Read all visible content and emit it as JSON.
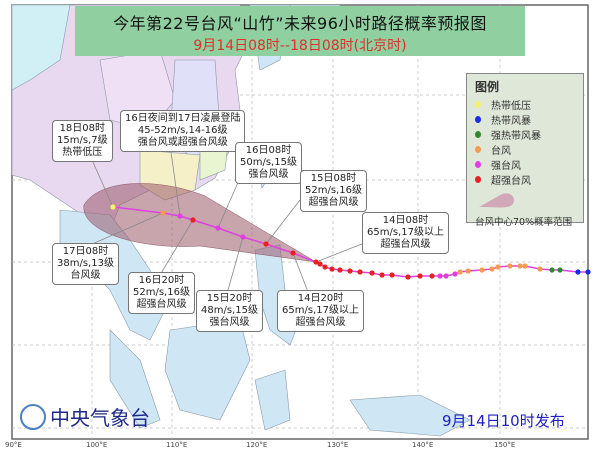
{
  "header": {
    "title": "今年第22号台风“山竹”未来96小时路径概率预报图",
    "subtitle": "9月14日08时--18日08时(北京时)"
  },
  "legend": {
    "heading": "图例",
    "items": [
      {
        "label": "热带低压",
        "color": "#f5f06a"
      },
      {
        "label": "热带风暴",
        "color": "#1a2be0"
      },
      {
        "label": "强热带风暴",
        "color": "#2e8a2e"
      },
      {
        "label": "台风",
        "color": "#f59a50"
      },
      {
        "label": "强台风",
        "color": "#e040e0"
      },
      {
        "label": "超强台风",
        "color": "#e82020"
      }
    ],
    "cone_label": "台风中心70%概率范围",
    "cone_color": "#b07a88"
  },
  "forecast_labels": [
    {
      "id": "t18-08",
      "lines": [
        "18日08时",
        "15m/s,7级",
        "热带低压"
      ]
    },
    {
      "id": "landfall",
      "lines": [
        "16日夜间到17日凌晨登陆",
        "45-52m/s,14-16级",
        "强台风或超强台风级"
      ]
    },
    {
      "id": "t16-08",
      "lines": [
        "16日08时",
        "50m/s,15级",
        "强台风级"
      ]
    },
    {
      "id": "t15-08",
      "lines": [
        "15日08时",
        "52m/s,16级",
        "超强台风级"
      ]
    },
    {
      "id": "t14-08",
      "lines": [
        "14日08时",
        "65m/s,17级以上",
        "超强台风级"
      ]
    },
    {
      "id": "t17-08",
      "lines": [
        "17日08时",
        "38m/s,13级",
        "台风级"
      ]
    },
    {
      "id": "t16-20",
      "lines": [
        "16日20时",
        "52m/s,16级",
        "超强台风级"
      ]
    },
    {
      "id": "t15-20",
      "lines": [
        "15日20时",
        "48m/s,15级",
        "强台风级"
      ]
    },
    {
      "id": "t14-20",
      "lines": [
        "14日20时",
        "65m/s,17级以上",
        "超强台风级"
      ]
    }
  ],
  "axis": {
    "longitude_ticks": [
      "90°E",
      "100°E",
      "110°E",
      "120°E",
      "130°E",
      "140°E",
      "150°E"
    ]
  },
  "footer": {
    "agency": "中央气象台",
    "issued": "9月14日10时发布"
  },
  "colors": {
    "track_line": "#e040e0",
    "sea": "#ffffff",
    "land": "#cfe6f5",
    "title_bg": "#8fcfa0"
  }
}
